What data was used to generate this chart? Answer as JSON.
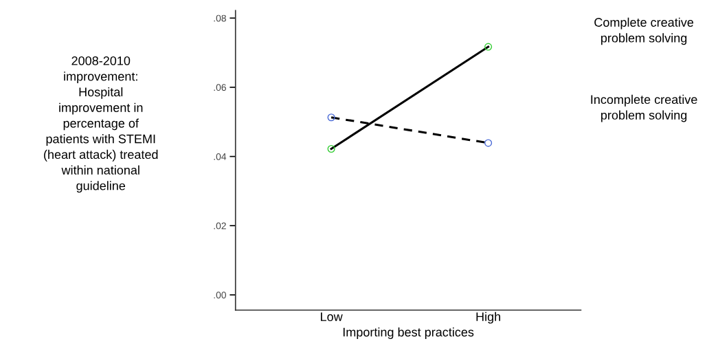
{
  "chart_data": {
    "type": "line",
    "categories": [
      "Low",
      "High"
    ],
    "xlabel": "Importing best practices",
    "ylabel": "2008-2010 improvement: Hospital improvement in percentage of patients with STEMI (heart attack) treated within national guideline",
    "series": [
      {
        "name": "Complete creative problem solving",
        "color": "#000000",
        "colors": [
          "#33cc33",
          "#33cc33"
        ],
        "line_style": "solid",
        "values": [
          0.0422,
          0.0717
        ]
      },
      {
        "name": "Incomplete creative problem solving",
        "color": "#000000",
        "colors": [
          "#4a6ad6",
          "#4a6ad6"
        ],
        "line_style": "dashed",
        "values": [
          0.0513,
          0.0439
        ]
      }
    ],
    "ylim": [
      -0.0044,
      0.0822
    ],
    "yticks": [
      {
        "value": 0,
        "label": ".00"
      },
      {
        "value": 0.02,
        "label": ".02"
      },
      {
        "value": 0.04,
        "label": ".04"
      },
      {
        "value": 0.06,
        "label": ".06"
      },
      {
        "value": 0.08,
        "label": ".08"
      }
    ],
    "marker": "circle",
    "grid": false,
    "legend": false
  }
}
